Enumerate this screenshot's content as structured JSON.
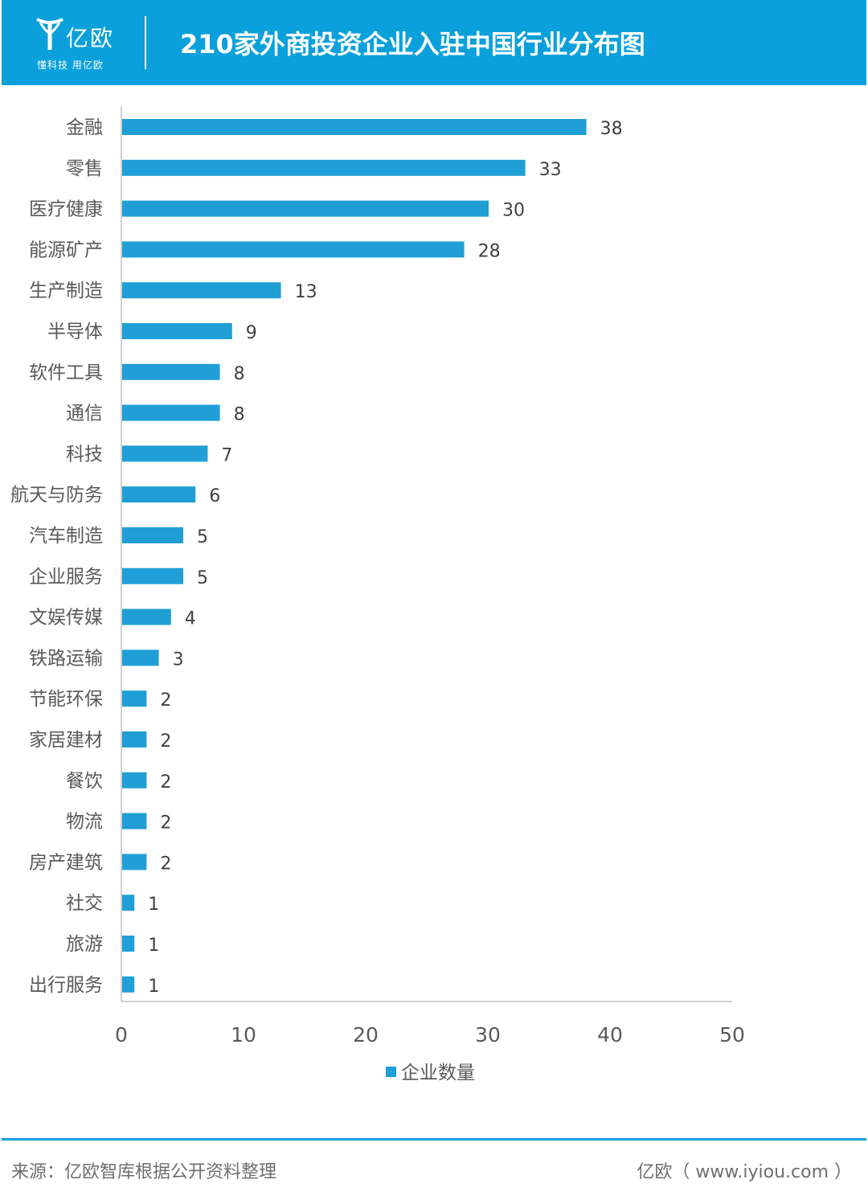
{
  "header": {
    "logo_name": "亿欧",
    "logo_tagline": "懂科技 用亿欧",
    "title": "210家外商投资企业入驻中国行业分布图"
  },
  "colors": {
    "accent": "#0aa0db",
    "bar": "#1f9fd6",
    "axis": "#bfbfbf",
    "label_text": "#595959",
    "value_text": "#404040"
  },
  "chart_data": {
    "type": "bar",
    "orientation": "horizontal",
    "title": "210家外商投资企业入驻中国行业分布图",
    "categories": [
      "金融",
      "零售",
      "医疗健康",
      "能源矿产",
      "生产制造",
      "半导体",
      "软件工具",
      "通信",
      "科技",
      "航天与防务",
      "汽车制造",
      "企业服务",
      "文娱传媒",
      "铁路运输",
      "节能环保",
      "家居建材",
      "餐饮",
      "物流",
      "房产建筑",
      "社交",
      "旅游",
      "出行服务"
    ],
    "series": [
      {
        "name": "企业数量",
        "values": [
          38,
          33,
          30,
          28,
          13,
          9,
          8,
          8,
          7,
          6,
          5,
          5,
          4,
          3,
          2,
          2,
          2,
          2,
          2,
          1,
          1,
          1
        ]
      }
    ],
    "xlim": [
      0,
      50
    ],
    "xticks": [
      0,
      10,
      20,
      30,
      40,
      50
    ],
    "data_labels": true,
    "grid": false,
    "legend": "bottom"
  },
  "footer": {
    "source": "来源：亿欧智库根据公开资料整理",
    "site": "亿欧（ www.iyiou.com ）"
  }
}
